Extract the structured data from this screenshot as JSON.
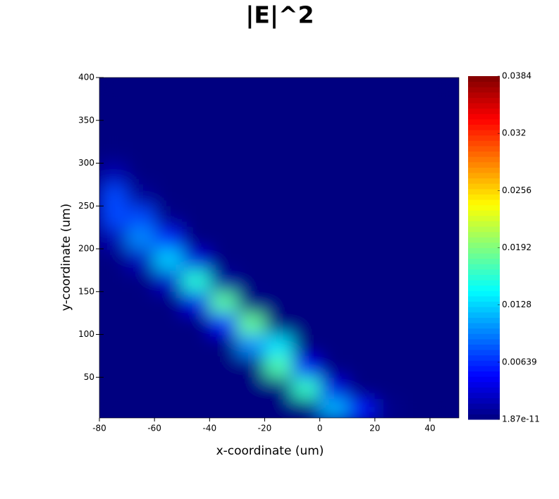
{
  "chart_data": {
    "type": "heatmap",
    "title": "|E|^2",
    "x_label": "x-coordinate (um)",
    "y_label": "y-coordinate (um)",
    "x": [
      -75,
      -65,
      -55,
      -45,
      -35,
      -25,
      -15,
      -5,
      5,
      15,
      25,
      35,
      45
    ],
    "y": [
      12.5,
      37.5,
      62.5,
      87.5,
      112.5,
      137.5,
      162.5,
      187.5,
      212.5,
      237.5,
      262.5,
      287.5,
      312.5,
      337.5,
      362.5,
      387.5
    ],
    "z": [
      [
        0,
        0,
        0,
        0,
        0,
        0,
        0,
        0.0001,
        0.0117,
        0.0058,
        0.0005,
        0,
        0
      ],
      [
        0,
        0,
        0,
        0,
        0,
        0,
        0,
        0.0165,
        0.0039,
        0,
        0,
        0,
        0
      ],
      [
        0,
        0,
        0,
        0,
        0,
        0,
        0.0174,
        0.0046,
        0.0001,
        0,
        0,
        0,
        0
      ],
      [
        0,
        0,
        0,
        0,
        0,
        0.0101,
        0.0134,
        0,
        0,
        0,
        0,
        0,
        0
      ],
      [
        0,
        0,
        0,
        0,
        0.0052,
        0.0183,
        0,
        0,
        0,
        0,
        0,
        0,
        0
      ],
      [
        0,
        0,
        0,
        0.0041,
        0.0179,
        0.0003,
        0,
        0,
        0,
        0,
        0,
        0,
        0
      ],
      [
        0,
        0.0001,
        0.0029,
        0.016,
        0.0013,
        0,
        0,
        0,
        0,
        0,
        0,
        0,
        0
      ],
      [
        0.0001,
        0.0024,
        0.0126,
        0.0037,
        0,
        0,
        0,
        0,
        0,
        0,
        0,
        0,
        0
      ],
      [
        0.0019,
        0.01,
        0.0062,
        0,
        0,
        0,
        0,
        0,
        0,
        0,
        0,
        0,
        0
      ],
      [
        0.0076,
        0.0076,
        0.0004,
        0,
        0,
        0,
        0,
        0,
        0,
        0,
        0,
        0,
        0
      ],
      [
        0.0076,
        0.001,
        0,
        0,
        0,
        0,
        0,
        0,
        0,
        0,
        0,
        0,
        0
      ],
      [
        0.0019,
        0,
        0,
        0,
        0,
        0,
        0,
        0,
        0,
        0,
        0,
        0,
        0
      ],
      [
        0.0001,
        0,
        0,
        0,
        0,
        0,
        0,
        0,
        0,
        0,
        0,
        0,
        0
      ],
      [
        0,
        0,
        0,
        0,
        0,
        0,
        0,
        0,
        0,
        0,
        0,
        0,
        0
      ],
      [
        0,
        0,
        0,
        0,
        0,
        0,
        0,
        0,
        0,
        0,
        0,
        0,
        0
      ],
      [
        0,
        0,
        0,
        0,
        0,
        0,
        0,
        0,
        0,
        0,
        0,
        0,
        0
      ]
    ],
    "xlim": [
      -80,
      50.5
    ],
    "xticks": [
      -80,
      -60,
      -40,
      -20,
      0,
      20,
      40
    ],
    "ylim": [
      2.5,
      400
    ],
    "yticks": [
      50,
      100,
      150,
      200,
      250,
      300,
      350,
      400
    ],
    "colormap": "jet",
    "clim": [
      1.87e-11,
      0.0384
    ],
    "colorbar_ticks": [
      1.87e-11,
      0.00639,
      0.0128,
      0.0192,
      0.0256,
      0.032,
      0.0384
    ]
  }
}
